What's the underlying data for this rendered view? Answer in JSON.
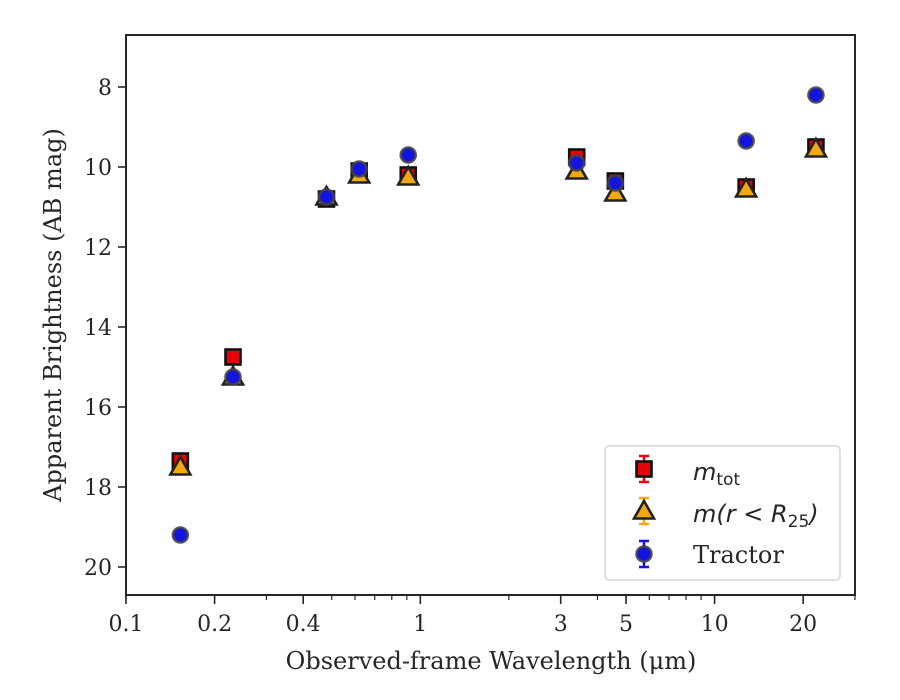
{
  "chart_data": {
    "type": "scatter",
    "title": "",
    "xlabel": "Observed-frame Wavelength (μm)",
    "ylabel": "Apparent Brightness (AB mag)",
    "xscale": "log",
    "xlim": [
      0.1,
      30
    ],
    "ylim": [
      20.7,
      6.7
    ],
    "y_inverted": true,
    "grid": false,
    "x_ticks": [
      0.1,
      0.2,
      0.4,
      1,
      3,
      5,
      10,
      20
    ],
    "x_tick_labels": [
      "0.1",
      "0.2",
      "0.4",
      "1",
      "3",
      "5",
      "10",
      "20"
    ],
    "y_ticks": [
      8,
      10,
      12,
      14,
      16,
      18,
      20
    ],
    "y_tick_labels": [
      "8",
      "10",
      "12",
      "14",
      "16",
      "18",
      "20"
    ],
    "legend_position": "lower right",
    "series": [
      {
        "name": "m_tot",
        "marker": "square",
        "color": "#e8000b",
        "x": [
          0.153,
          0.231,
          0.48,
          0.62,
          0.91,
          3.4,
          4.6,
          12.8,
          22.1
        ],
        "y": [
          17.35,
          14.75,
          10.8,
          10.1,
          10.2,
          9.75,
          10.35,
          10.5,
          9.5
        ]
      },
      {
        "name": "m(r<R_25)",
        "marker": "triangle",
        "color": "#f1a90e",
        "x": [
          0.153,
          0.231,
          0.48,
          0.62,
          0.91,
          3.4,
          4.6,
          12.8,
          22.1
        ],
        "y": [
          17.5,
          15.25,
          10.75,
          10.2,
          10.25,
          10.1,
          10.65,
          10.55,
          9.55
        ]
      },
      {
        "name": "Tractor",
        "marker": "circle",
        "color": "#1414e0",
        "x": [
          0.153,
          0.231,
          0.48,
          0.62,
          0.91,
          3.4,
          4.6,
          12.8,
          22.1
        ],
        "y": [
          19.2,
          15.25,
          10.75,
          10.05,
          9.7,
          9.9,
          10.4,
          9.35,
          8.2
        ]
      }
    ]
  },
  "legend": {
    "m_tot_base": "m",
    "m_tot_sub": "tot",
    "m_r_base": "m(r < R",
    "m_r_sub": "25",
    "m_r_close": ")",
    "tractor": "Tractor"
  }
}
